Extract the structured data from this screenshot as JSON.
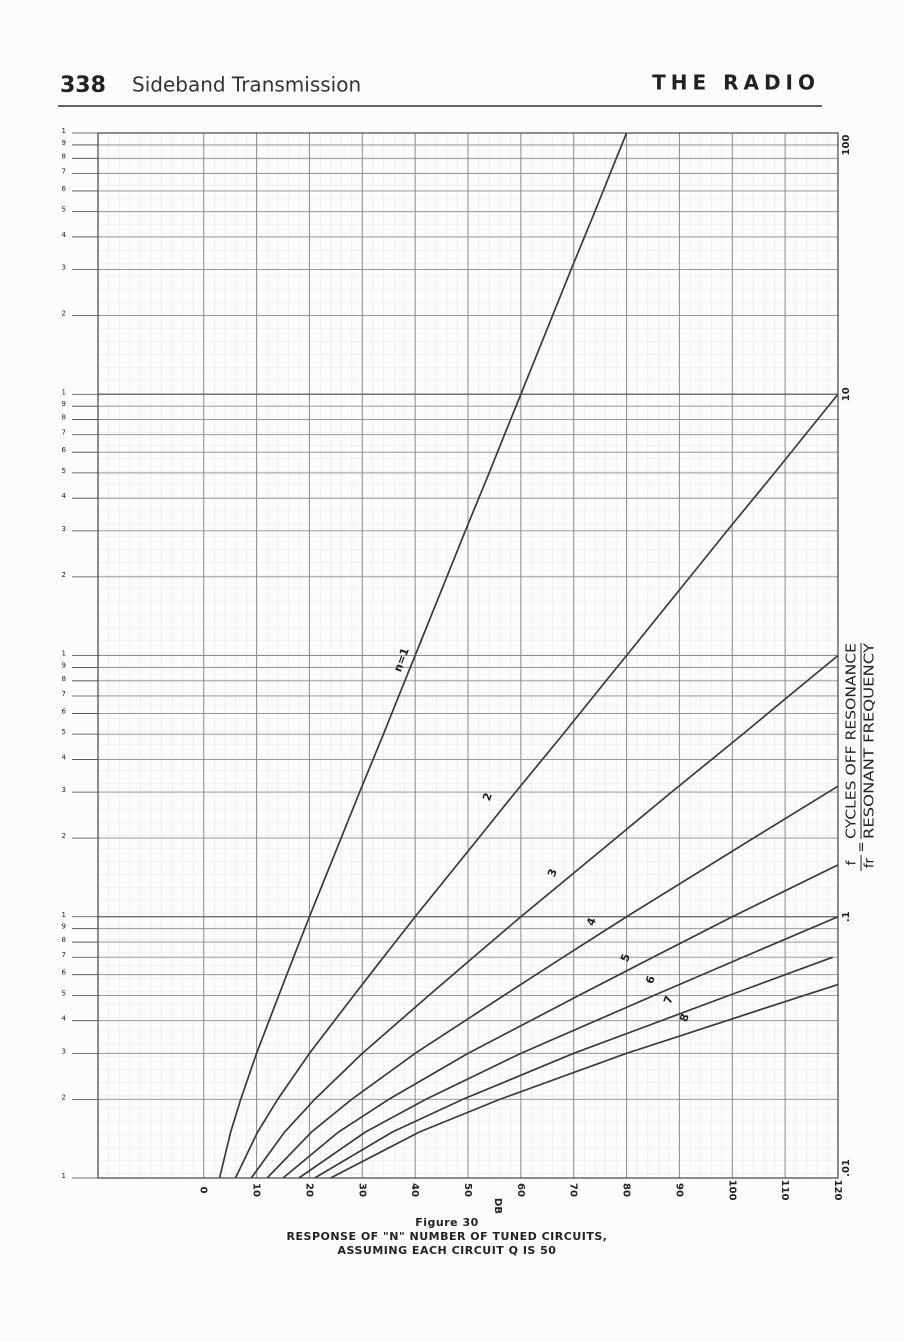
{
  "header": {
    "page_number": "338",
    "section": "Sideband Transmission",
    "book": "THE RADIO"
  },
  "chart_data": {
    "type": "line",
    "x_label": "DB",
    "y_label": {
      "numerator": "f",
      "denominator": "fr",
      "equals": "=",
      "top": "CYCLES OFF RESONANCE",
      "bottom": "RESONANT FREQUENCY"
    },
    "caption": [
      "Figure 30",
      "RESPONSE OF \"N\" NUMBER OF TUNED CIRCUITS,",
      "ASSUMING EACH CIRCUIT Q IS 50"
    ],
    "xlim": [
      -20,
      120
    ],
    "xticks": [
      0,
      10,
      20,
      30,
      40,
      50,
      60,
      70,
      80,
      90,
      100,
      110,
      120
    ],
    "ylim": [
      0.01,
      100
    ],
    "log_y": true,
    "yticks": [
      100,
      10,
      {
        "value": 0.1,
        "label": ".1"
      },
      {
        "value": 0.01,
        "label": ".01"
      }
    ],
    "y_minor_ticks": [
      {
        "value": 100,
        "label": "1"
      },
      {
        "value": 90,
        "label": "9"
      },
      {
        "value": 80,
        "label": "8"
      },
      {
        "value": 70,
        "label": "7"
      },
      {
        "value": 60,
        "label": "6"
      },
      {
        "value": 50,
        "label": "5"
      },
      {
        "value": 40,
        "label": "4"
      },
      {
        "value": 30,
        "label": "3"
      },
      {
        "value": 20,
        "label": "2"
      },
      {
        "value": 10,
        "label": "1"
      },
      {
        "value": 9,
        "label": "9"
      },
      {
        "value": 8,
        "label": "8"
      },
      {
        "value": 7,
        "label": "7"
      },
      {
        "value": 6,
        "label": "6"
      },
      {
        "value": 5,
        "label": "5"
      },
      {
        "value": 4,
        "label": "4"
      },
      {
        "value": 3,
        "label": "3"
      },
      {
        "value": 2,
        "label": "2"
      },
      {
        "value": 1,
        "label": "1"
      },
      {
        "value": 0.9,
        "label": "9"
      },
      {
        "value": 0.8,
        "label": "8"
      },
      {
        "value": 0.7,
        "label": "7"
      },
      {
        "value": 0.6,
        "label": "6"
      },
      {
        "value": 0.5,
        "label": "5"
      },
      {
        "value": 0.4,
        "label": "4"
      },
      {
        "value": 0.3,
        "label": "3"
      },
      {
        "value": 0.2,
        "label": "2"
      },
      {
        "value": 0.1,
        "label": "1"
      },
      {
        "value": 0.09,
        "label": "9"
      },
      {
        "value": 0.08,
        "label": "8"
      },
      {
        "value": 0.07,
        "label": "7"
      },
      {
        "value": 0.06,
        "label": "6"
      },
      {
        "value": 0.05,
        "label": "5"
      },
      {
        "value": 0.04,
        "label": "4"
      },
      {
        "value": 0.03,
        "label": "3"
      },
      {
        "value": 0.02,
        "label": "2"
      },
      {
        "value": 0.01,
        "label": "1"
      }
    ],
    "grid": true,
    "series": [
      {
        "name": "n=1",
        "color": "#3a3a3a",
        "x": [
          3.0,
          5.1,
          7.0,
          10.0,
          14.2,
          17.0,
          20.0,
          26.0,
          29.5,
          34.0,
          36.9,
          40,
          46.0,
          49.5,
          54.0,
          56.9,
          60,
          66.0,
          69.5,
          74.0,
          76.9,
          80
        ],
        "values": [
          0.01,
          0.015,
          0.02,
          0.03,
          0.05,
          0.07,
          0.1,
          0.2,
          0.3,
          0.5,
          0.7,
          1,
          2,
          3,
          5,
          7,
          10,
          20,
          30,
          50,
          70,
          100
        ]
      },
      {
        "name": "2",
        "color": "#3a3a3a",
        "x": [
          6.0,
          10.2,
          14.0,
          20,
          28.4,
          34,
          40,
          52,
          59,
          68,
          73.8,
          80,
          92,
          99,
          108,
          113.8,
          120
        ],
        "values": [
          0.01,
          0.015,
          0.02,
          0.03,
          0.05,
          0.07,
          0.1,
          0.2,
          0.3,
          0.5,
          0.7,
          1,
          2,
          3,
          5,
          7,
          10
        ]
      },
      {
        "name": "3",
        "color": "#3a3a3a",
        "x": [
          9,
          15.3,
          21,
          30,
          42.6,
          51,
          60,
          78,
          88.5,
          102,
          110.7,
          120
        ],
        "values": [
          0.01,
          0.015,
          0.02,
          0.03,
          0.05,
          0.07,
          0.1,
          0.2,
          0.3,
          0.5,
          0.7,
          1
        ]
      },
      {
        "name": "4",
        "color": "#3a3a3a",
        "x": [
          12,
          20.4,
          28,
          40,
          56.8,
          68,
          80,
          104,
          120
        ],
        "values": [
          0.01,
          0.015,
          0.02,
          0.03,
          0.05,
          0.07,
          0.1,
          0.2,
          0.316
        ]
      },
      {
        "name": "5",
        "color": "#3a3a3a",
        "x": [
          15,
          25.5,
          35,
          50,
          71,
          85,
          100,
          120
        ],
        "values": [
          0.01,
          0.015,
          0.02,
          0.03,
          0.05,
          0.07,
          0.1,
          0.158
        ]
      },
      {
        "name": "6",
        "color": "#3a3a3a",
        "x": [
          18,
          30.6,
          42,
          60,
          85.2,
          102,
          120
        ],
        "values": [
          0.01,
          0.015,
          0.02,
          0.03,
          0.05,
          0.07,
          0.1
        ]
      },
      {
        "name": "7",
        "color": "#3a3a3a",
        "x": [
          21,
          35.7,
          49,
          70,
          99.4,
          119
        ],
        "values": [
          0.01,
          0.015,
          0.02,
          0.03,
          0.05,
          0.07
        ]
      },
      {
        "name": "8",
        "color": "#3a3a3a",
        "x": [
          24,
          40.8,
          56,
          80,
          113.6,
          120
        ],
        "values": [
          0.01,
          0.015,
          0.02,
          0.03,
          0.05,
          0.055
        ]
      }
    ]
  }
}
